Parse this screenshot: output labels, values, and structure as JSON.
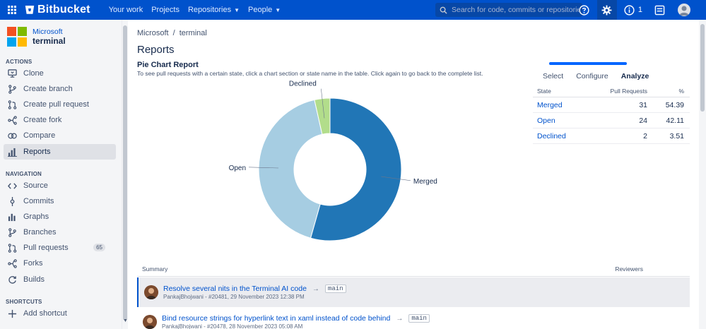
{
  "topbar": {
    "brand": "Bitbucket",
    "nav": [
      {
        "label": "Your work",
        "dropdown": false
      },
      {
        "label": "Projects",
        "dropdown": false
      },
      {
        "label": "Repositories",
        "dropdown": true
      },
      {
        "label": "People",
        "dropdown": true
      }
    ],
    "search_placeholder": "Search for code, commits or repositories...",
    "notifications_count": "1",
    "accent_color": "#0052cc"
  },
  "repo": {
    "owner": "Microsoft",
    "name": "terminal"
  },
  "sidebar": {
    "actions_title": "ACTIONS",
    "actions": [
      {
        "label": "Clone",
        "icon": "clone-icon"
      },
      {
        "label": "Create branch",
        "icon": "branch-icon"
      },
      {
        "label": "Create pull request",
        "icon": "pull-request-icon"
      },
      {
        "label": "Create fork",
        "icon": "fork-icon"
      },
      {
        "label": "Compare",
        "icon": "compare-icon"
      },
      {
        "label": "Reports",
        "icon": "reports-icon",
        "active": true
      }
    ],
    "navigation_title": "NAVIGATION",
    "navigation": [
      {
        "label": "Source",
        "icon": "source-icon"
      },
      {
        "label": "Commits",
        "icon": "commit-icon"
      },
      {
        "label": "Graphs",
        "icon": "graph-icon"
      },
      {
        "label": "Branches",
        "icon": "branch-icon"
      },
      {
        "label": "Pull requests",
        "icon": "pull-request-icon",
        "badge": "65"
      },
      {
        "label": "Forks",
        "icon": "fork-icon"
      },
      {
        "label": "Builds",
        "icon": "builds-icon"
      }
    ],
    "shortcuts_title": "SHORTCUTS",
    "add_shortcut": "Add shortcut"
  },
  "breadcrumb": {
    "project": "Microsoft",
    "separator": "/",
    "repo": "terminal"
  },
  "page_title": "Reports",
  "report": {
    "title": "Pie Chart Report",
    "description": "To see pull requests with a certain state, click a chart section or state name in the table. Click again to go back to the complete list.",
    "tabs": [
      "Select",
      "Configure",
      "Analyze"
    ],
    "active_tab": "Analyze",
    "table_headers": {
      "state": "State",
      "pull_requests": "Pull Requests",
      "percent": "%"
    }
  },
  "chart_data": {
    "type": "pie",
    "donut": true,
    "categories": [
      "Merged",
      "Open",
      "Declined"
    ],
    "values": [
      31,
      24,
      2
    ],
    "percentages": [
      54.39,
      42.11,
      3.51
    ],
    "colors": [
      "#2176b6",
      "#a6cde2",
      "#b2dd8b"
    ],
    "title": "",
    "legend": "labels-on-slices"
  },
  "summary": {
    "header_summary": "Summary",
    "header_reviewers": "Reviewers",
    "rows": [
      {
        "title": "Resolve several nits in the Terminal AI code",
        "meta": "PankajBhojwani - #20481, 29 November 2023 12:38 PM",
        "target": "main",
        "highlighted": true
      },
      {
        "title": "Bind resource strings for hyperlink text in xaml instead of code behind",
        "meta": "PankajBhojwani - #20478, 28 November 2023 05:08 AM",
        "target": "main",
        "highlighted": false
      }
    ]
  }
}
